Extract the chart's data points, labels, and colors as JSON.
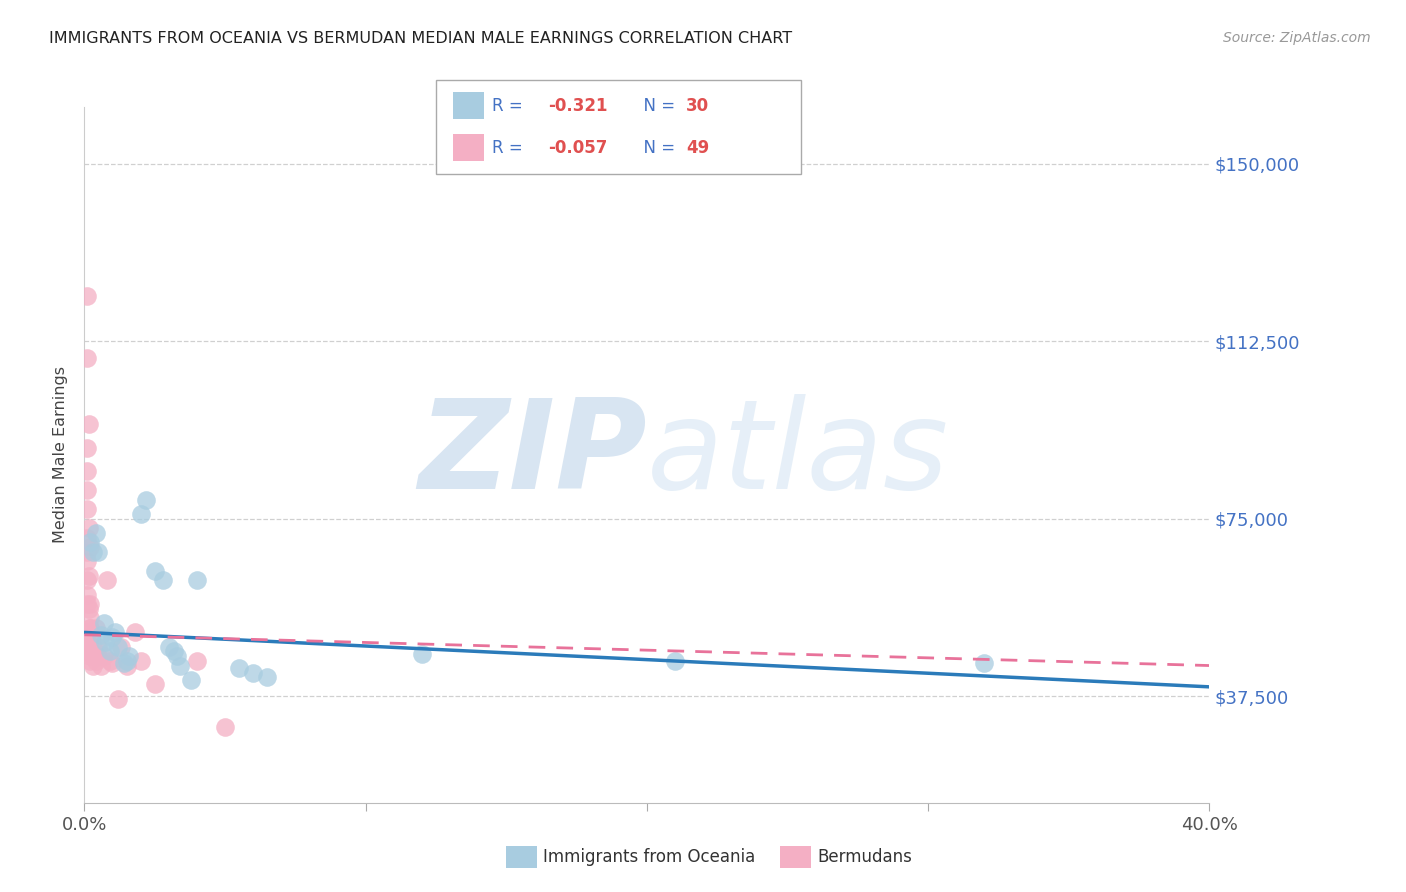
{
  "title": "IMMIGRANTS FROM OCEANIA VS BERMUDAN MEDIAN MALE EARNINGS CORRELATION CHART",
  "source": "Source: ZipAtlas.com",
  "ylabel": "Median Male Earnings",
  "y_ticks": [
    37500,
    75000,
    112500,
    150000
  ],
  "y_tick_labels": [
    "$37,500",
    "$75,000",
    "$112,500",
    "$150,000"
  ],
  "x_min": 0.0,
  "x_max": 0.4,
  "y_min": 15000,
  "y_max": 162000,
  "legend_label1": "Immigrants from Oceania",
  "legend_label2": "Bermudans",
  "color_blue": "#a8cce0",
  "color_pink": "#f4afc4",
  "color_blue_line": "#2b7bba",
  "color_pink_line": "#e8729a",
  "color_right_labels": "#4472c4",
  "color_legend_text": "#4472c4",
  "color_neg_val": "#e05050",
  "watermark_color": "#d8e8f5",
  "scatter_blue": [
    [
      0.002,
      70000
    ],
    [
      0.003,
      68000
    ],
    [
      0.004,
      72000
    ],
    [
      0.005,
      68000
    ],
    [
      0.006,
      50500
    ],
    [
      0.007,
      53000
    ],
    [
      0.0075,
      49000
    ],
    [
      0.009,
      47000
    ],
    [
      0.01,
      50000
    ],
    [
      0.011,
      51000
    ],
    [
      0.012,
      48000
    ],
    [
      0.014,
      44500
    ],
    [
      0.015,
      45000
    ],
    [
      0.016,
      46000
    ],
    [
      0.02,
      76000
    ],
    [
      0.022,
      79000
    ],
    [
      0.025,
      64000
    ],
    [
      0.028,
      62000
    ],
    [
      0.03,
      48000
    ],
    [
      0.032,
      47000
    ],
    [
      0.033,
      46000
    ],
    [
      0.034,
      44000
    ],
    [
      0.038,
      41000
    ],
    [
      0.04,
      62000
    ],
    [
      0.055,
      43500
    ],
    [
      0.06,
      42500
    ],
    [
      0.065,
      41500
    ],
    [
      0.12,
      46500
    ],
    [
      0.21,
      45000
    ],
    [
      0.32,
      44500
    ]
  ],
  "scatter_pink": [
    [
      0.001,
      122000
    ],
    [
      0.001,
      109000
    ],
    [
      0.0015,
      95000
    ],
    [
      0.001,
      90000
    ],
    [
      0.001,
      85000
    ],
    [
      0.001,
      81000
    ],
    [
      0.001,
      77000
    ],
    [
      0.0015,
      73000
    ],
    [
      0.001,
      71000
    ],
    [
      0.001,
      68000
    ],
    [
      0.001,
      66000
    ],
    [
      0.0015,
      63000
    ],
    [
      0.001,
      62000
    ],
    [
      0.001,
      59000
    ],
    [
      0.001,
      57000
    ],
    [
      0.0015,
      56000
    ],
    [
      0.002,
      54000
    ],
    [
      0.002,
      52000
    ],
    [
      0.001,
      51000
    ],
    [
      0.001,
      49500
    ],
    [
      0.001,
      48000
    ],
    [
      0.001,
      47000
    ],
    [
      0.002,
      69000
    ],
    [
      0.002,
      57000
    ],
    [
      0.002,
      52000
    ],
    [
      0.0025,
      50000
    ],
    [
      0.002,
      48000
    ],
    [
      0.002,
      46000
    ],
    [
      0.002,
      45000
    ],
    [
      0.003,
      48000
    ],
    [
      0.003,
      46000
    ],
    [
      0.003,
      44000
    ],
    [
      0.004,
      52000
    ],
    [
      0.004,
      45000
    ],
    [
      0.005,
      48000
    ],
    [
      0.005,
      46000
    ],
    [
      0.006,
      44000
    ],
    [
      0.007,
      46000
    ],
    [
      0.008,
      62000
    ],
    [
      0.009,
      45000
    ],
    [
      0.01,
      44500
    ],
    [
      0.012,
      37000
    ],
    [
      0.013,
      48000
    ],
    [
      0.015,
      44000
    ],
    [
      0.018,
      51000
    ],
    [
      0.02,
      45000
    ],
    [
      0.025,
      40000
    ],
    [
      0.04,
      45000
    ],
    [
      0.05,
      31000
    ]
  ],
  "blue_line": [
    [
      0.0,
      51000
    ],
    [
      0.4,
      39500
    ]
  ],
  "pink_line": [
    [
      0.0,
      50500
    ],
    [
      0.4,
      44000
    ]
  ]
}
